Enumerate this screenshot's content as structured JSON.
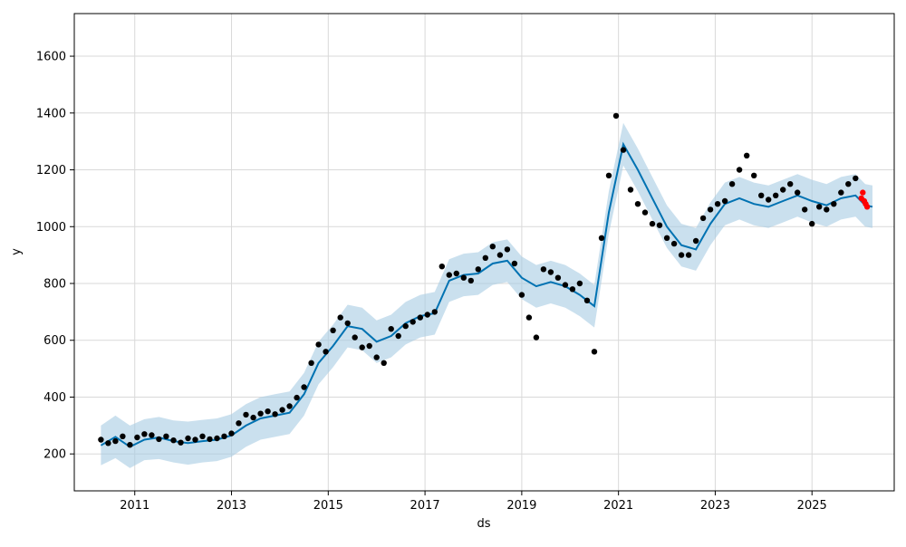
{
  "chart_data": {
    "type": "scatter",
    "title": "",
    "xlabel": "ds",
    "ylabel": "y",
    "xlim": [
      2009.75,
      2026.7
    ],
    "ylim": [
      70,
      1750
    ],
    "xticks": [
      2011,
      2013,
      2015,
      2017,
      2019,
      2021,
      2023,
      2025
    ],
    "xtick_labels": [
      "2011",
      "2013",
      "2015",
      "2017",
      "2019",
      "2021",
      "2023",
      "2025"
    ],
    "yticks": [
      200,
      400,
      600,
      800,
      1000,
      1200,
      1400,
      1600
    ],
    "ytick_labels": [
      "200",
      "400",
      "600",
      "800",
      "1000",
      "1200",
      "1400",
      "1600"
    ],
    "grid": true,
    "colors": {
      "observed": "#000000",
      "forecast": "#0072b2",
      "uncertainty": "#a6cbe3",
      "recent": "#ff0000"
    },
    "series": [
      {
        "role": "observed",
        "x": [
          2010.3,
          2010.45,
          2010.6,
          2010.75,
          2010.9,
          2011.05,
          2011.2,
          2011.35,
          2011.5,
          2011.65,
          2011.8,
          2011.95,
          2012.1,
          2012.25,
          2012.4,
          2012.55,
          2012.7,
          2012.85,
          2013.0,
          2013.15,
          2013.3,
          2013.45,
          2013.6,
          2013.75,
          2013.9,
          2014.05,
          2014.2,
          2014.35,
          2014.5,
          2014.65,
          2014.8,
          2014.95,
          2015.1,
          2015.25,
          2015.4,
          2015.55,
          2015.7,
          2015.85,
          2016.0,
          2016.15,
          2016.3,
          2016.45,
          2016.6,
          2016.75,
          2016.9,
          2017.05,
          2017.2,
          2017.35,
          2017.5,
          2017.65,
          2017.8,
          2017.95,
          2018.1,
          2018.25,
          2018.4,
          2018.55,
          2018.7,
          2018.85,
          2019.0,
          2019.15,
          2019.3,
          2019.45,
          2019.6,
          2019.75,
          2019.9,
          2020.05,
          2020.2,
          2020.35,
          2020.5,
          2020.65,
          2020.8,
          2020.95,
          2021.1,
          2021.25,
          2021.4,
          2021.55,
          2021.7,
          2021.85,
          2022.0,
          2022.15,
          2022.3,
          2022.45,
          2022.6,
          2022.75,
          2022.9,
          2023.05,
          2023.2,
          2023.35,
          2023.5,
          2023.65,
          2023.8,
          2023.95,
          2024.1,
          2024.25,
          2024.4,
          2024.55,
          2024.7,
          2024.85,
          2025.0,
          2025.15,
          2025.3,
          2025.45,
          2025.6,
          2025.75,
          2025.9
        ],
        "y": [
          250,
          238,
          245,
          262,
          232,
          258,
          270,
          266,
          252,
          262,
          248,
          240,
          255,
          250,
          262,
          252,
          255,
          262,
          272,
          308,
          338,
          328,
          342,
          350,
          340,
          355,
          368,
          398,
          435,
          520,
          585,
          560,
          635,
          680,
          660,
          610,
          575,
          580,
          540,
          520,
          640,
          615,
          650,
          665,
          680,
          690,
          700,
          860,
          830,
          835,
          820,
          810,
          850,
          890,
          930,
          900,
          920,
          870,
          760,
          680,
          610,
          850,
          840,
          820,
          795,
          780,
          800,
          740,
          560,
          960,
          1180,
          1390,
          1270,
          1130,
          1080,
          1050,
          1010,
          1005,
          960,
          940,
          900,
          900,
          950,
          1030,
          1060,
          1080,
          1090,
          1150,
          1200,
          1250,
          1180,
          1110,
          1095,
          1110,
          1130,
          1150,
          1120,
          1060,
          1010,
          1070,
          1060,
          1080,
          1120,
          1150,
          1170
        ]
      },
      {
        "role": "recent",
        "x": [
          2026.02,
          2026.05,
          2026.08,
          2026.11,
          2026.14
        ],
        "y": [
          1100,
          1120,
          1090,
          1080,
          1070
        ]
      }
    ],
    "forecast": {
      "x": [
        2010.3,
        2010.6,
        2010.9,
        2011.2,
        2011.5,
        2011.8,
        2012.1,
        2012.4,
        2012.7,
        2013.0,
        2013.3,
        2013.6,
        2013.9,
        2014.2,
        2014.5,
        2014.8,
        2015.1,
        2015.4,
        2015.7,
        2016.0,
        2016.3,
        2016.6,
        2016.9,
        2017.2,
        2017.5,
        2017.8,
        2018.1,
        2018.4,
        2018.7,
        2019.0,
        2019.3,
        2019.6,
        2019.9,
        2020.2,
        2020.5,
        2020.8,
        2021.1,
        2021.4,
        2021.7,
        2022.0,
        2022.3,
        2022.6,
        2022.9,
        2023.2,
        2023.5,
        2023.8,
        2024.1,
        2024.4,
        2024.7,
        2025.0,
        2025.3,
        2025.6,
        2025.9,
        2026.1,
        2026.25
      ],
      "y": [
        230,
        260,
        225,
        250,
        258,
        245,
        238,
        245,
        250,
        265,
        300,
        325,
        335,
        345,
        410,
        520,
        580,
        650,
        640,
        595,
        615,
        660,
        685,
        695,
        810,
        830,
        835,
        870,
        880,
        820,
        790,
        805,
        790,
        760,
        720,
        1050,
        1290,
        1200,
        1100,
        1000,
        935,
        920,
        1010,
        1080,
        1100,
        1080,
        1070,
        1090,
        1110,
        1090,
        1075,
        1100,
        1110,
        1075,
        1070
      ]
    },
    "band": {
      "lower": [
        160,
        185,
        150,
        178,
        182,
        170,
        162,
        170,
        175,
        190,
        225,
        250,
        260,
        270,
        335,
        445,
        505,
        575,
        565,
        520,
        540,
        585,
        610,
        620,
        735,
        755,
        760,
        795,
        805,
        745,
        715,
        730,
        715,
        685,
        645,
        975,
        1215,
        1125,
        1025,
        925,
        860,
        845,
        935,
        1005,
        1025,
        1005,
        995,
        1015,
        1035,
        1015,
        1000,
        1025,
        1035,
        1000,
        995
      ],
      "upper": [
        300,
        335,
        300,
        322,
        330,
        318,
        314,
        320,
        325,
        340,
        375,
        400,
        410,
        420,
        485,
        595,
        655,
        725,
        715,
        670,
        690,
        735,
        760,
        770,
        885,
        905,
        910,
        945,
        955,
        895,
        865,
        880,
        865,
        835,
        795,
        1125,
        1365,
        1275,
        1175,
        1075,
        1010,
        995,
        1085,
        1155,
        1175,
        1155,
        1145,
        1165,
        1185,
        1165,
        1150,
        1175,
        1185,
        1150,
        1145
      ]
    }
  }
}
